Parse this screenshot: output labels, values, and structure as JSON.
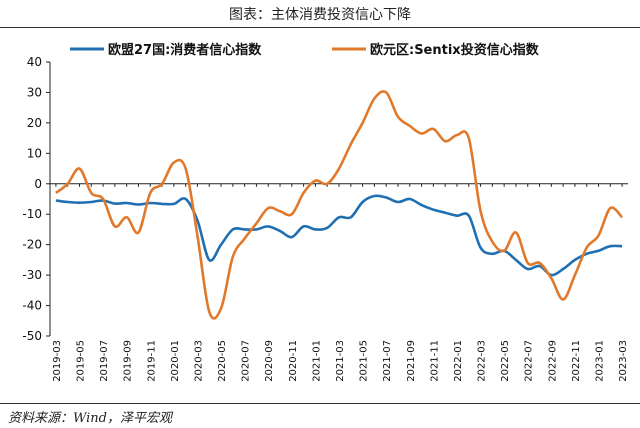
{
  "header": {
    "title": "图表：主体消费投资信心下降"
  },
  "footer": {
    "source": "资料来源：Wind，泽平宏观"
  },
  "chart_data": {
    "type": "line",
    "ylim": [
      -50,
      40
    ],
    "yticks": [
      40,
      30,
      20,
      10,
      0,
      -10,
      -20,
      -30,
      -40,
      -50
    ],
    "x": [
      "2019-03",
      "2019-04",
      "2019-05",
      "2019-06",
      "2019-07",
      "2019-08",
      "2019-09",
      "2019-10",
      "2019-11",
      "2019-12",
      "2020-01",
      "2020-02",
      "2020-03",
      "2020-04",
      "2020-05",
      "2020-06",
      "2020-07",
      "2020-08",
      "2020-09",
      "2020-10",
      "2020-11",
      "2020-12",
      "2021-01",
      "2021-02",
      "2021-03",
      "2021-04",
      "2021-05",
      "2021-06",
      "2021-07",
      "2021-08",
      "2021-09",
      "2021-10",
      "2021-11",
      "2021-12",
      "2022-01",
      "2022-02",
      "2022-03",
      "2022-04",
      "2022-05",
      "2022-06",
      "2022-07",
      "2022-08",
      "2022-09",
      "2022-10",
      "2022-11",
      "2022-12",
      "2023-01",
      "2023-02",
      "2023-03"
    ],
    "xtick_labels": [
      "2019-03",
      "2019-05",
      "2019-07",
      "2019-09",
      "2019-11",
      "2020-01",
      "2020-03",
      "2020-05",
      "2020-07",
      "2020-09",
      "2020-11",
      "2021-01",
      "2021-03",
      "2021-05",
      "2021-07",
      "2021-09",
      "2021-11",
      "2022-01",
      "2022-03",
      "2022-05",
      "2022-07",
      "2022-09",
      "2022-11",
      "2023-01",
      "2023-03"
    ],
    "legend_position": "top",
    "grid": false,
    "series": [
      {
        "name": "欧盟27国:消费者信心指数",
        "color": "#1f6fb2",
        "values": [
          -5.5,
          -6.0,
          -6.2,
          -6.0,
          -5.5,
          -6.5,
          -6.3,
          -6.8,
          -6.3,
          -6.6,
          -6.6,
          -5.0,
          -12.0,
          -25.0,
          -20.0,
          -15.0,
          -15.0,
          -15.0,
          -14.0,
          -15.5,
          -17.5,
          -14.0,
          -15.0,
          -14.5,
          -11.0,
          -11.0,
          -6.0,
          -4.0,
          -4.5,
          -6.0,
          -5.0,
          -7.0,
          -8.5,
          -9.5,
          -10.5,
          -10.5,
          -21.0,
          -23.0,
          -22.0,
          -25.0,
          -28.0,
          -27.0,
          -30.0,
          -28.0,
          -25.0,
          -23.0,
          -22.0,
          -20.5,
          -20.5
        ]
      },
      {
        "name": "欧元区:Sentix投资信心指数",
        "color": "#e0792b",
        "values": [
          -3.0,
          0.0,
          5.0,
          -3.0,
          -5.0,
          -14.0,
          -11.0,
          -16.0,
          -3.0,
          0.0,
          7.0,
          5.0,
          -17.0,
          -42.0,
          -41.0,
          -24.0,
          -18.0,
          -13.0,
          -8.0,
          -9.0,
          -10.0,
          -3.0,
          1.0,
          0.0,
          5.0,
          13.0,
          20.0,
          28.0,
          30.0,
          22.0,
          19.0,
          16.5,
          18.0,
          14.0,
          16.0,
          15.0,
          -9.0,
          -19.0,
          -22.0,
          -16.0,
          -26.0,
          -26.0,
          -31.0,
          -38.0,
          -30.0,
          -21.0,
          -17.0,
          -8.0,
          -11.0
        ]
      }
    ]
  }
}
